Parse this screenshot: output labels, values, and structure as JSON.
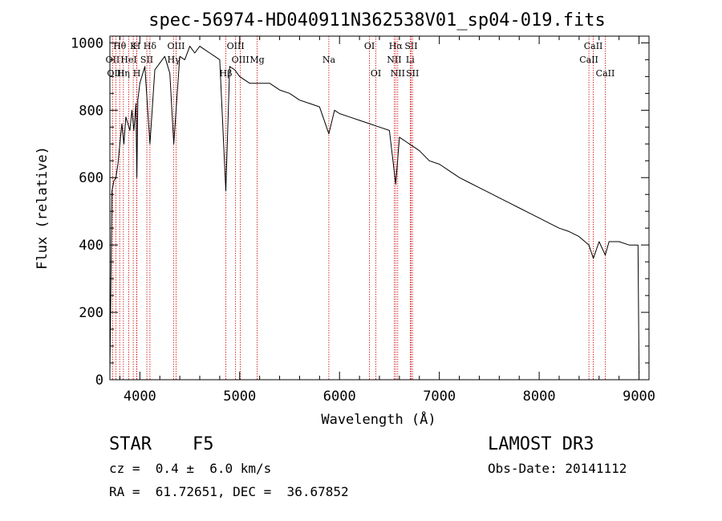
{
  "chart_data": {
    "type": "line",
    "title": "spec-56974-HD040911N362538V01_sp04-019.fits",
    "xlabel": "Wavelength (Å)",
    "ylabel": "Flux (relative)",
    "xlim": [
      3700,
      9100
    ],
    "ylim": [
      0,
      1020
    ],
    "xticks": [
      4000,
      5000,
      6000,
      7000,
      8000,
      9000
    ],
    "yticks": [
      0,
      200,
      400,
      600,
      800,
      1000
    ],
    "series": [
      {
        "name": "flux",
        "x": [
          3700,
          3720,
          3740,
          3760,
          3780,
          3800,
          3820,
          3840,
          3860,
          3880,
          3900,
          3920,
          3940,
          3960,
          3970,
          3980,
          4000,
          4050,
          4101,
          4150,
          4200,
          4250,
          4300,
          4340,
          4400,
          4450,
          4500,
          4550,
          4600,
          4650,
          4700,
          4750,
          4800,
          4861,
          4900,
          4950,
          5000,
          5100,
          5200,
          5300,
          5400,
          5500,
          5600,
          5700,
          5800,
          5893,
          5950,
          6000,
          6100,
          6200,
          6300,
          6400,
          6500,
          6563,
          6600,
          6700,
          6800,
          6900,
          7000,
          7100,
          7200,
          7300,
          7400,
          7500,
          7600,
          7700,
          7800,
          7900,
          8000,
          8100,
          8200,
          8300,
          8400,
          8498,
          8542,
          8600,
          8662,
          8700,
          8800,
          8900,
          8990,
          9000
        ],
        "values": [
          20,
          560,
          590,
          600,
          640,
          700,
          760,
          700,
          780,
          760,
          740,
          800,
          740,
          820,
          600,
          830,
          880,
          930,
          700,
          920,
          940,
          960,
          910,
          700,
          960,
          950,
          990,
          970,
          990,
          980,
          970,
          960,
          950,
          560,
          930,
          920,
          900,
          880,
          880,
          880,
          860,
          850,
          830,
          820,
          810,
          730,
          800,
          790,
          780,
          770,
          760,
          750,
          740,
          580,
          720,
          700,
          680,
          650,
          640,
          620,
          600,
          585,
          570,
          555,
          540,
          525,
          510,
          495,
          480,
          465,
          450,
          440,
          425,
          400,
          360,
          410,
          370,
          410,
          410,
          400,
          400,
          20
        ]
      }
    ],
    "line_markers": [
      {
        "label": "Hθ",
        "x": 3798,
        "row": 1
      },
      {
        "label": "OII",
        "x": 3727,
        "row": 2
      },
      {
        "label": "OIII",
        "x": 3760,
        "row": 3
      },
      {
        "label": "K",
        "x": 3934,
        "row": 1
      },
      {
        "label": "H",
        "x": 3969,
        "row": 1
      },
      {
        "label": "HeI",
        "x": 3889,
        "row": 2
      },
      {
        "label": "SII",
        "x": 4070,
        "row": 2
      },
      {
        "label": "Hη",
        "x": 3835,
        "row": 3
      },
      {
        "label": "H",
        "x": 3970,
        "row": 3
      },
      {
        "label": "Hδ",
        "x": 4101,
        "row": 1
      },
      {
        "label": "OIII",
        "x": 4363,
        "row": 1
      },
      {
        "label": "Hγ",
        "x": 4340,
        "row": 2
      },
      {
        "label": "Hβ",
        "x": 4861,
        "row": 3
      },
      {
        "label": "OIII",
        "x": 4959,
        "row": 1
      },
      {
        "label": "OIII",
        "x": 5007,
        "row": 2
      },
      {
        "label": "Mg",
        "x": 5175,
        "row": 2
      },
      {
        "label": "Na",
        "x": 5893,
        "row": 2
      },
      {
        "label": "OI",
        "x": 6300,
        "row": 1
      },
      {
        "label": "OI",
        "x": 6364,
        "row": 3
      },
      {
        "label": "Hα",
        "x": 6563,
        "row": 1
      },
      {
        "label": "NII",
        "x": 6548,
        "row": 2
      },
      {
        "label": "NII",
        "x": 6583,
        "row": 3
      },
      {
        "label": "SII",
        "x": 6717,
        "row": 1
      },
      {
        "label": "Li",
        "x": 6708,
        "row": 2
      },
      {
        "label": "SII",
        "x": 6731,
        "row": 3
      },
      {
        "label": "CaII",
        "x": 8542,
        "row": 1
      },
      {
        "label": "CaII",
        "x": 8498,
        "row": 2
      },
      {
        "label": "CaII",
        "x": 8662,
        "row": 3
      }
    ]
  },
  "info": {
    "object_class": "STAR",
    "subclass": "F5",
    "redshift": "cz =  0.4 ±  6.0 km/s",
    "coords": "RA =  61.72651, DEC =  36.67852",
    "survey": "LAMOST DR3",
    "obs_date": "Obs-Date: 20141112"
  },
  "colors": {
    "axis": "#000000",
    "spectrum": "#000000",
    "marker": "#cc0000"
  }
}
